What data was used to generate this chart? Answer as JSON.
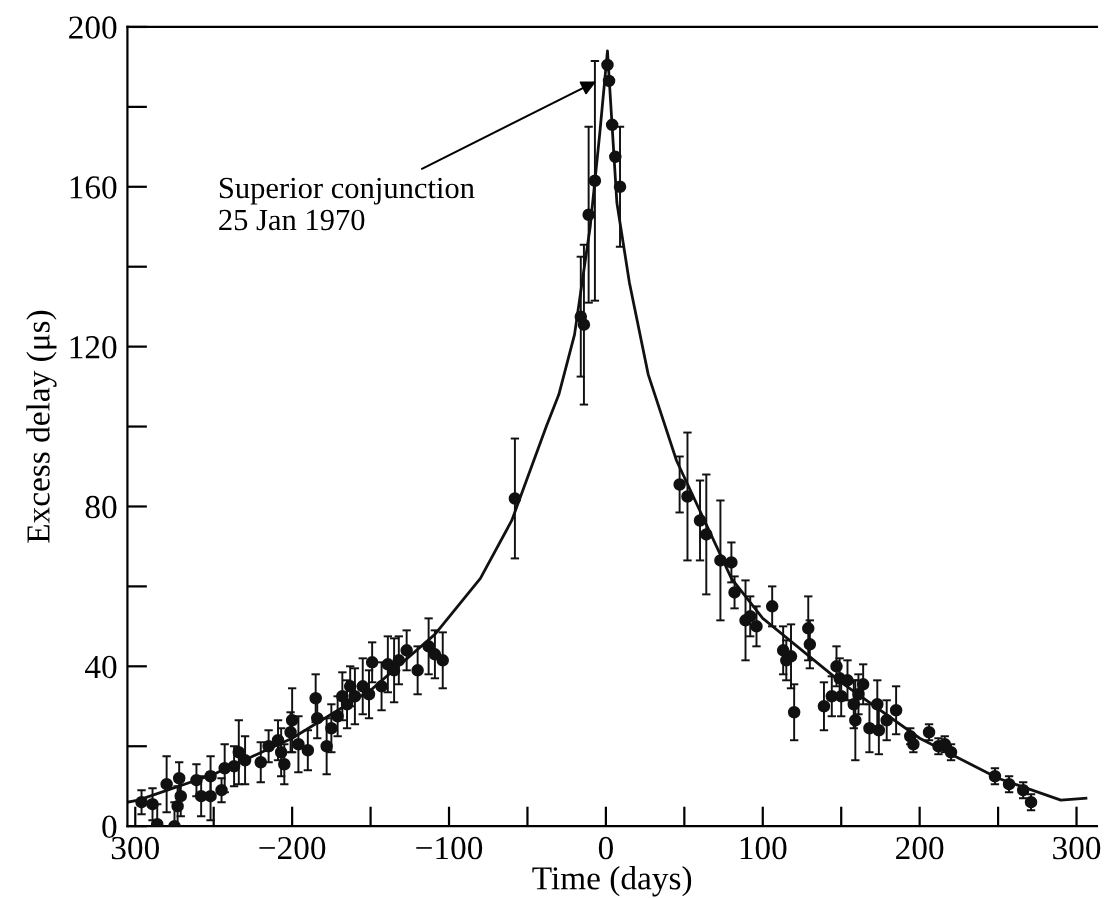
{
  "chart_data": {
    "type": "scatter",
    "xlabel": "Time (days)",
    "ylabel": "Excess delay (μs)",
    "xlim": [
      -305,
      313
    ],
    "ylim": [
      0,
      200
    ],
    "xticks": [
      {
        "value": -300,
        "label": "300"
      },
      {
        "value": -250,
        "label": null
      },
      -200,
      {
        "value": -150,
        "label": null
      },
      -100,
      {
        "value": -50,
        "label": null
      },
      0,
      {
        "value": 50,
        "label": null
      },
      100,
      {
        "value": 150,
        "label": null
      },
      200,
      {
        "value": 250,
        "label": null
      },
      300
    ],
    "yticks": [
      0,
      {
        "value": 20,
        "label": null
      },
      40,
      {
        "value": 60,
        "label": null
      },
      80,
      {
        "value": 100,
        "label": null
      },
      120,
      {
        "value": 140,
        "label": null
      },
      160,
      {
        "value": 180,
        "label": null
      },
      200
    ],
    "grid": false,
    "annotations": [
      {
        "text": "Superior conjunction\n25 Jan 1970",
        "x": -3,
        "y": 187
      }
    ],
    "series": [
      {
        "marker": "circle",
        "color": "#111111",
        "x": [
          -296,
          -289,
          -286,
          -280,
          -272,
          -273,
          -275,
          -271,
          -261,
          -258,
          -252,
          -252,
          -245,
          -243,
          -237,
          -234,
          -230,
          -220,
          -215,
          -209,
          -207,
          -205,
          -201,
          -200,
          -196,
          -190,
          -185,
          -184,
          -178,
          -175,
          -171,
          -168,
          -165,
          -163,
          -160,
          -155,
          -151,
          -149,
          -143,
          -139,
          -135,
          -132,
          -127,
          -120,
          -113,
          -109,
          -104,
          -58,
          -16,
          -14,
          -11,
          -7,
          1,
          2,
          4,
          6,
          9,
          47,
          52,
          60,
          64,
          73,
          80,
          82,
          89,
          92,
          96,
          106,
          113,
          115,
          118,
          120,
          129,
          130,
          139,
          144,
          147,
          149,
          150,
          154,
          158,
          159,
          161,
          164,
          168,
          173,
          174,
          179,
          185,
          194,
          196,
          206,
          212,
          216,
          220,
          248,
          257,
          266,
          271
        ],
        "values": [
          6,
          5.5,
          0.5,
          10.5,
          12,
          5,
          0,
          7.5,
          11.5,
          7.5,
          12.5,
          7.5,
          9,
          14.5,
          15,
          18.5,
          16.5,
          16,
          20,
          21.5,
          18.5,
          15.5,
          23.5,
          26.5,
          20.5,
          19,
          32,
          27,
          20,
          24.5,
          27.5,
          32.5,
          30.5,
          35,
          32.5,
          35,
          33,
          41,
          35,
          40.5,
          39,
          41.5,
          44,
          39,
          45,
          43,
          41.5,
          82,
          127.5,
          125.5,
          153,
          161.5,
          190.5,
          186.5,
          175.5,
          167.5,
          160,
          85.5,
          82.5,
          76.5,
          73,
          66.5,
          66,
          58.5,
          51.5,
          52.5,
          50,
          55,
          44,
          41.5,
          42.5,
          28.5,
          49.5,
          45.5,
          30,
          32.5,
          40,
          37,
          32.5,
          36.5,
          30.5,
          26.5,
          33,
          35.5,
          24.5,
          30.5,
          24,
          26.5,
          29,
          22.5,
          20.5,
          23.5,
          20,
          20.5,
          18.5,
          12.5,
          10.5,
          9,
          6
        ],
        "errors": [
          3,
          4,
          5,
          7,
          4,
          5,
          6,
          5,
          4,
          5,
          5,
          6,
          3,
          6,
          5,
          8,
          6,
          5,
          4,
          5,
          6,
          5,
          5,
          8,
          7,
          5,
          6,
          5,
          7,
          6,
          5,
          6,
          6,
          5,
          7,
          7,
          6,
          5,
          6,
          7,
          8,
          6,
          5,
          6,
          7,
          6,
          7,
          15,
          15,
          20,
          22,
          30,
          null,
          null,
          null,
          null,
          15,
          7,
          16,
          10,
          15,
          15,
          5,
          4,
          10,
          5,
          5,
          5,
          6,
          5,
          8,
          7,
          8,
          6,
          6,
          5,
          5,
          5,
          5,
          5,
          6,
          10,
          5,
          5,
          6,
          6,
          6,
          5,
          6,
          2,
          2,
          2,
          2,
          2,
          2,
          2,
          2,
          2,
          2
        ]
      },
      {
        "type": "line",
        "color": "#111111",
        "x": [
          -305,
          -298,
          -250,
          -200,
          -150,
          -109,
          -80,
          -60,
          -38,
          -30,
          -20,
          -10,
          -4,
          1,
          7,
          15,
          27,
          45,
          80,
          100,
          150,
          200,
          250,
          290,
          306
        ],
        "values": [
          6,
          6.5,
          13,
          22,
          34,
          48,
          62,
          76.5,
          100,
          108,
          123,
          150,
          173,
          194,
          156,
          136,
          113,
          91.5,
          62,
          52,
          36,
          22,
          12,
          6.5,
          7
        ]
      }
    ]
  }
}
